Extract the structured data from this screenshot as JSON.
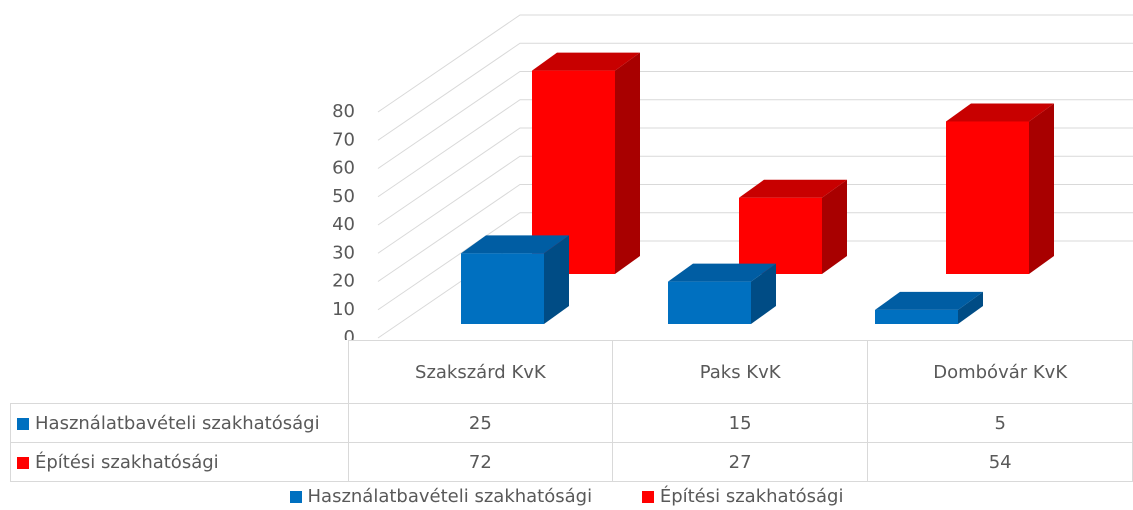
{
  "chart_data": {
    "type": "bar3d",
    "categories": [
      "Szakszárd KvK",
      "Paks KvK",
      "Dombóvár KvK"
    ],
    "series": [
      {
        "name": "Használatbavételi szakhatósági",
        "color": "#0070c0",
        "side": "#004c85",
        "top": "#005da3",
        "values": [
          25,
          15,
          5
        ]
      },
      {
        "name": "Építési szakhatósági",
        "color": "#ff0000",
        "side": "#a80000",
        "top": "#c80000",
        "values": [
          72,
          27,
          54
        ]
      }
    ],
    "ylim": [
      0,
      80
    ],
    "yticks": [
      0,
      10,
      20,
      30,
      40,
      50,
      60,
      70,
      80
    ],
    "grid": true,
    "legend": "bottom"
  }
}
